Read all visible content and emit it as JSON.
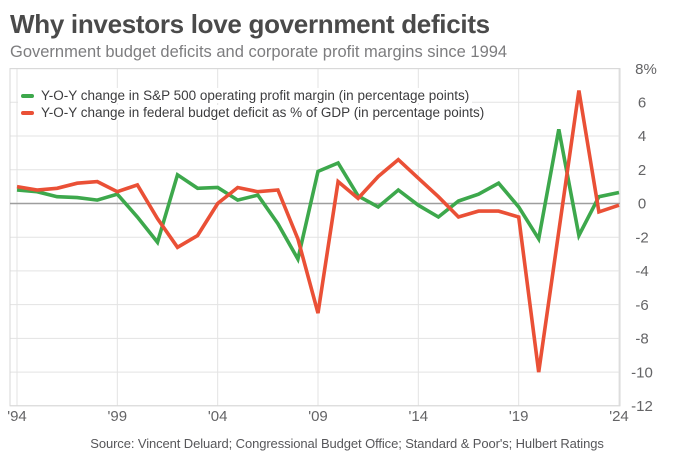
{
  "header": {
    "title": "Why investors love government deficits",
    "subtitle": "Government budget deficits and corporate profit margins since 1994"
  },
  "source": "Source: Vincent Deluard; Congressional Budget Office; Standard & Poor's; Hulbert Ratings",
  "chart_data": {
    "type": "line",
    "title": "Why investors love government deficits",
    "subtitle": "Government budget deficits and corporate profit margins since 1994",
    "x": [
      1994,
      1995,
      1996,
      1997,
      1998,
      1999,
      2000,
      2001,
      2002,
      2003,
      2004,
      2005,
      2006,
      2007,
      2008,
      2009,
      2010,
      2011,
      2012,
      2013,
      2014,
      2015,
      2016,
      2017,
      2018,
      2019,
      2020,
      2021,
      2022,
      2023,
      2024
    ],
    "series": [
      {
        "id": "sp500-margin",
        "name": "Y-O-Y change in S&P 500 operating profit margin (in percentage points)",
        "color": "#3da84c",
        "values": [
          0.8,
          0.7,
          0.4,
          0.35,
          0.2,
          0.55,
          -0.8,
          -2.3,
          1.7,
          0.9,
          0.95,
          0.2,
          0.5,
          -1.2,
          -3.3,
          1.9,
          2.4,
          0.45,
          -0.2,
          0.8,
          -0.1,
          -0.8,
          0.15,
          0.55,
          1.2,
          -0.2,
          -2.1,
          4.4,
          -1.9,
          0.4,
          0.65
        ]
      },
      {
        "id": "budget-deficit",
        "name": "Y-O-Y change in federal budget deficit as % of GDP (in percentage points)",
        "color": "#ea5036",
        "values": [
          1.0,
          0.8,
          0.9,
          1.2,
          1.3,
          0.7,
          1.1,
          -0.9,
          -2.6,
          -1.9,
          0.0,
          0.95,
          0.7,
          0.8,
          -2.1,
          -6.5,
          1.3,
          0.3,
          1.6,
          2.6,
          1.5,
          0.4,
          -0.8,
          -0.45,
          -0.45,
          -0.8,
          -10.0,
          -1.65,
          6.7,
          -0.5,
          -0.1
        ]
      }
    ],
    "ylim": [
      -12,
      8
    ],
    "y_ticks": [
      "8%",
      "6",
      "4",
      "2",
      "0",
      "-2",
      "-4",
      "-6",
      "-8",
      "-10",
      "-12"
    ],
    "y_tick_values": [
      8,
      6,
      4,
      2,
      0,
      -2,
      -4,
      -6,
      -8,
      -10,
      -12
    ],
    "x_tick_years": [
      1994,
      1999,
      2004,
      2009,
      2014,
      2019,
      2024
    ],
    "x_tick_labels": [
      "'94",
      "'99",
      "'04",
      "'09",
      "'14",
      "'19",
      "'24"
    ],
    "grid": true,
    "zero_line": true,
    "legend_position": "top-left",
    "colors": {
      "grid": "#e3e3e3",
      "zero_line": "#9e9e9e",
      "frame": "#d7d7d7",
      "tick_text": "#646466"
    }
  }
}
